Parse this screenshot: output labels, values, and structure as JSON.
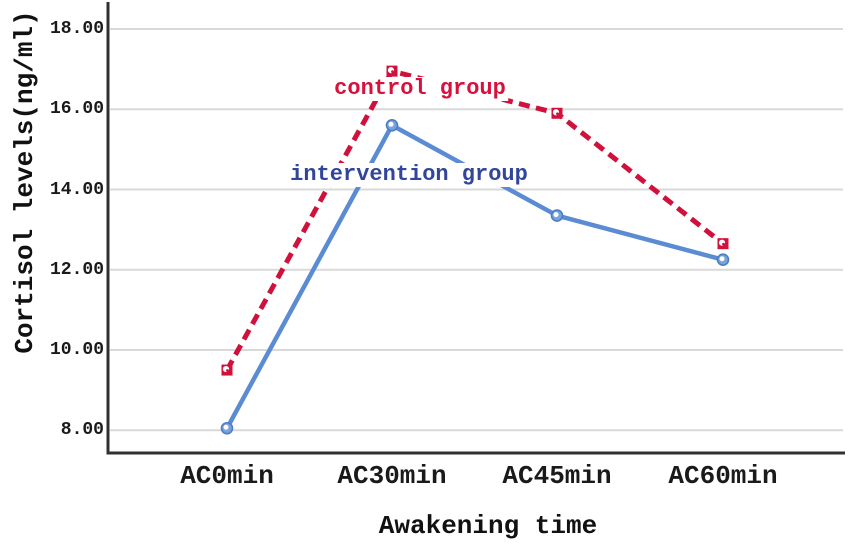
{
  "chart_data": {
    "type": "line",
    "categories": [
      "AC0min",
      "AC30min",
      "AC45min",
      "AC60min"
    ],
    "series": [
      {
        "name": "control group",
        "values": [
          9.5,
          16.95,
          15.9,
          12.65
        ],
        "color": "#D0113B",
        "label_color": "#D8103C",
        "line_style": "dashed",
        "marker": "square"
      },
      {
        "name": "intervention group",
        "values": [
          8.05,
          15.6,
          13.35,
          12.25
        ],
        "color": "#5B8CD3",
        "label_color": "#30459B",
        "line_style": "solid",
        "marker": "circle"
      }
    ],
    "title": "",
    "xlabel": "Awakening time",
    "ylabel": "Cortisol levels(ng/ml)",
    "ylim": [
      7.4,
      18.7
    ],
    "yticks": [
      18,
      16,
      14,
      12,
      10,
      8
    ],
    "ytick_labels": [
      "18.00",
      "16.00",
      "14.00",
      "12.00",
      "10.00",
      "8.00"
    ],
    "grid": true,
    "legend_position": "inline-annotations"
  },
  "colors": {
    "grid": "#D9D9D9",
    "axis": "#303030",
    "tick_text": "#1a1a1a",
    "background": "#ffffff"
  }
}
